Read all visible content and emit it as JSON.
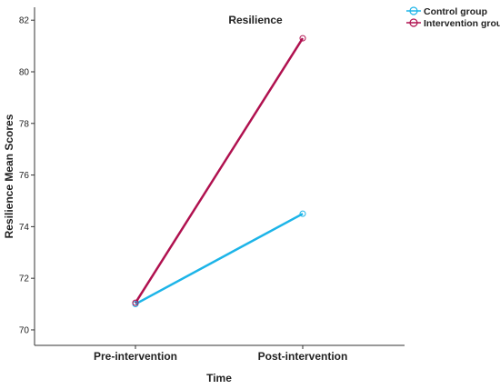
{
  "chart_data": {
    "type": "line",
    "title": "Resilience",
    "xlabel": "Time",
    "ylabel": "Resilience Mean Scores",
    "categories": [
      "Pre-intervention",
      "Post-intervention"
    ],
    "ylim": [
      69.4,
      82.5
    ],
    "yticks": [
      "70",
      "72",
      "74",
      "76",
      "78",
      "80",
      "82"
    ],
    "grid": false,
    "legend_position": "top-right",
    "series": [
      {
        "name": "Control group",
        "values": [
          71.0,
          74.5
        ],
        "color": "#1cb4e8"
      },
      {
        "name": "Intervention group",
        "values": [
          71.05,
          81.3
        ],
        "color": "#b0114f"
      }
    ]
  }
}
